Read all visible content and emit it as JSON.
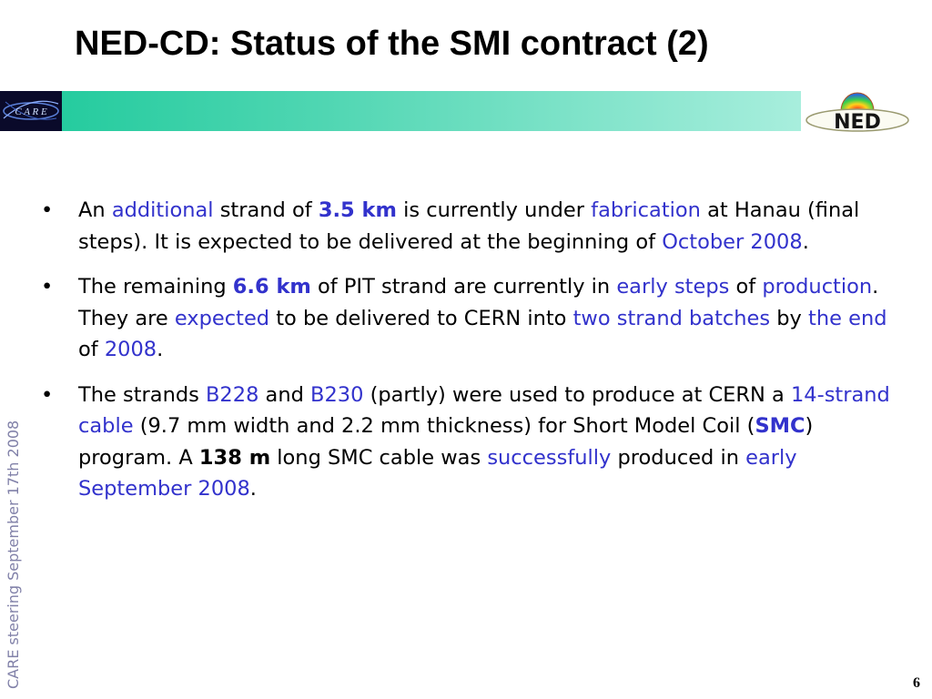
{
  "slide": {
    "title": "NED-CD: Status of the SMI contract (2)",
    "side_text": "CARE steering September 17th 2008",
    "page_number": "6",
    "bullet_symbol": "•",
    "highlight_color": "#3232cc"
  },
  "logos": {
    "care": {
      "text": "C A R E",
      "icon": "care-logo"
    },
    "ned": {
      "text": "NED",
      "icon": "ned-logo"
    }
  },
  "bullets": [
    {
      "runs": [
        {
          "text": "An ",
          "style": "normal"
        },
        {
          "text": "additional",
          "style": "highlight"
        },
        {
          "text": " strand of ",
          "style": "normal"
        },
        {
          "text": "3.5 km",
          "style": "highlight-bold"
        },
        {
          "text": " is currently under ",
          "style": "normal"
        },
        {
          "text": "fabrication",
          "style": "highlight"
        },
        {
          "text": " at Hanau (final steps). It is expected to be delivered at the beginning of ",
          "style": "normal"
        },
        {
          "text": "October 2008",
          "style": "highlight"
        },
        {
          "text": ".",
          "style": "normal"
        }
      ]
    },
    {
      "runs": [
        {
          "text": "The remaining ",
          "style": "normal"
        },
        {
          "text": "6.6 km",
          "style": "highlight-bold"
        },
        {
          "text": " of PIT strand are currently in ",
          "style": "normal"
        },
        {
          "text": "early steps",
          "style": "highlight"
        },
        {
          "text": " of ",
          "style": "normal"
        },
        {
          "text": "production",
          "style": "highlight"
        },
        {
          "text": ". They are ",
          "style": "normal"
        },
        {
          "text": "expected",
          "style": "highlight"
        },
        {
          "text": " to be delivered to CERN into ",
          "style": "normal"
        },
        {
          "text": "two strand batches",
          "style": "highlight"
        },
        {
          "text": " by ",
          "style": "normal"
        },
        {
          "text": "the end",
          "style": "highlight"
        },
        {
          "text": " of ",
          "style": "normal"
        },
        {
          "text": "2008",
          "style": "highlight"
        },
        {
          "text": ".",
          "style": "normal"
        }
      ]
    },
    {
      "runs": [
        {
          "text": "The strands ",
          "style": "normal"
        },
        {
          "text": "B228",
          "style": "highlight"
        },
        {
          "text": " and ",
          "style": "normal"
        },
        {
          "text": "B230",
          "style": "highlight"
        },
        {
          "text": " (partly) were used to produce at CERN a ",
          "style": "normal"
        },
        {
          "text": "14-strand cable",
          "style": "highlight"
        },
        {
          "text": " (9.7 mm width and 2.2 mm thickness) for Short Model Coil (",
          "style": "normal"
        },
        {
          "text": "SMC",
          "style": "highlight-bold"
        },
        {
          "text": ") program. A ",
          "style": "normal"
        },
        {
          "text": "138 m",
          "style": "bold"
        },
        {
          "text": " long SMC cable was ",
          "style": "normal"
        },
        {
          "text": "successfully",
          "style": "highlight"
        },
        {
          "text": " produced in ",
          "style": "normal"
        },
        {
          "text": "early September 2008",
          "style": "highlight"
        },
        {
          "text": ".",
          "style": "normal"
        }
      ]
    }
  ]
}
